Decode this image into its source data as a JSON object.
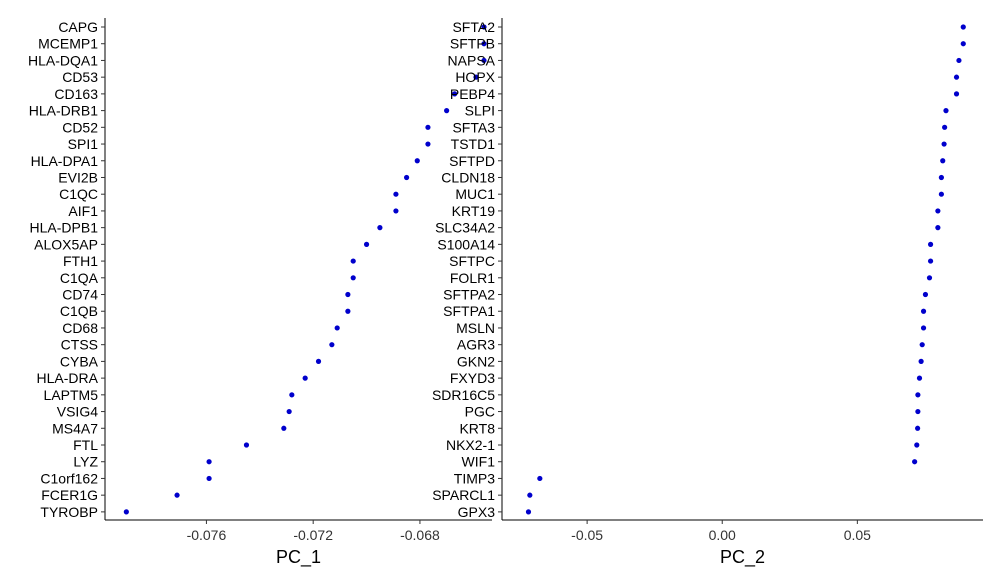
{
  "chart_data": [
    {
      "type": "scatter",
      "xlabel": "PC_1",
      "ylabel": "",
      "xlim": [
        -0.0798,
        -0.0653
      ],
      "xticks": [
        -0.076,
        -0.072,
        -0.068
      ],
      "xtick_labels": [
        "-0.076",
        "-0.072",
        "-0.068"
      ],
      "grid": false,
      "point_color": "#0000cc",
      "genes": [
        "CAPG",
        "MCEMP1",
        "HLA-DQA1",
        "CD53",
        "CD163",
        "HLA-DRB1",
        "CD52",
        "SPI1",
        "HLA-DPA1",
        "EVI2B",
        "C1QC",
        "AIF1",
        "HLA-DPB1",
        "ALOX5AP",
        "FTH1",
        "C1QA",
        "CD74",
        "C1QB",
        "CD68",
        "CTSS",
        "CYBA",
        "HLA-DRA",
        "LAPTM5",
        "VSIG4",
        "MS4A7",
        "FTL",
        "LYZ",
        "C1orf162",
        "FCER1G",
        "TYROBP"
      ],
      "values": [
        -0.0656,
        -0.0656,
        -0.0656,
        -0.0659,
        -0.0667,
        -0.067,
        -0.0677,
        -0.0677,
        -0.0681,
        -0.0685,
        -0.0689,
        -0.0689,
        -0.0695,
        -0.07,
        -0.0705,
        -0.0705,
        -0.0707,
        -0.0707,
        -0.0711,
        -0.0713,
        -0.0718,
        -0.0723,
        -0.0728,
        -0.0729,
        -0.0731,
        -0.0745,
        -0.0759,
        -0.0759,
        -0.0771,
        -0.079
      ]
    },
    {
      "type": "scatter",
      "xlabel": "PC_2",
      "ylabel": "",
      "xlim": [
        -0.0815,
        0.0965
      ],
      "xticks": [
        -0.05,
        0.0,
        0.05
      ],
      "xtick_labels": [
        "-0.05",
        "0.00",
        "0.05"
      ],
      "grid": false,
      "point_color": "#0000cc",
      "genes": [
        "SFTA2",
        "SFTPB",
        "NAPSA",
        "HOPX",
        "PEBP4",
        "SLPI",
        "SFTA3",
        "TSTD1",
        "SFTPD",
        "CLDN18",
        "MUC1",
        "KRT19",
        "SLC34A2",
        "S100A14",
        "SFTPC",
        "FOLR1",
        "SFTPA2",
        "SFTPA1",
        "MSLN",
        "AGR3",
        "GKN2",
        "FXYD3",
        "SDR16C5",
        "PGC",
        "KRT8",
        "NKX2-1",
        "WIF1",
        "TIMP3",
        "SPARCL1",
        "GPX3"
      ],
      "values": [
        0.0892,
        0.0892,
        0.0876,
        0.0867,
        0.0867,
        0.0828,
        0.0823,
        0.0821,
        0.0816,
        0.0811,
        0.0811,
        0.0798,
        0.0798,
        0.0771,
        0.0771,
        0.0767,
        0.0752,
        0.0745,
        0.0745,
        0.074,
        0.0736,
        0.073,
        0.0724,
        0.0724,
        0.0723,
        0.072,
        0.0712,
        -0.0675,
        -0.0712,
        -0.0717
      ]
    }
  ]
}
